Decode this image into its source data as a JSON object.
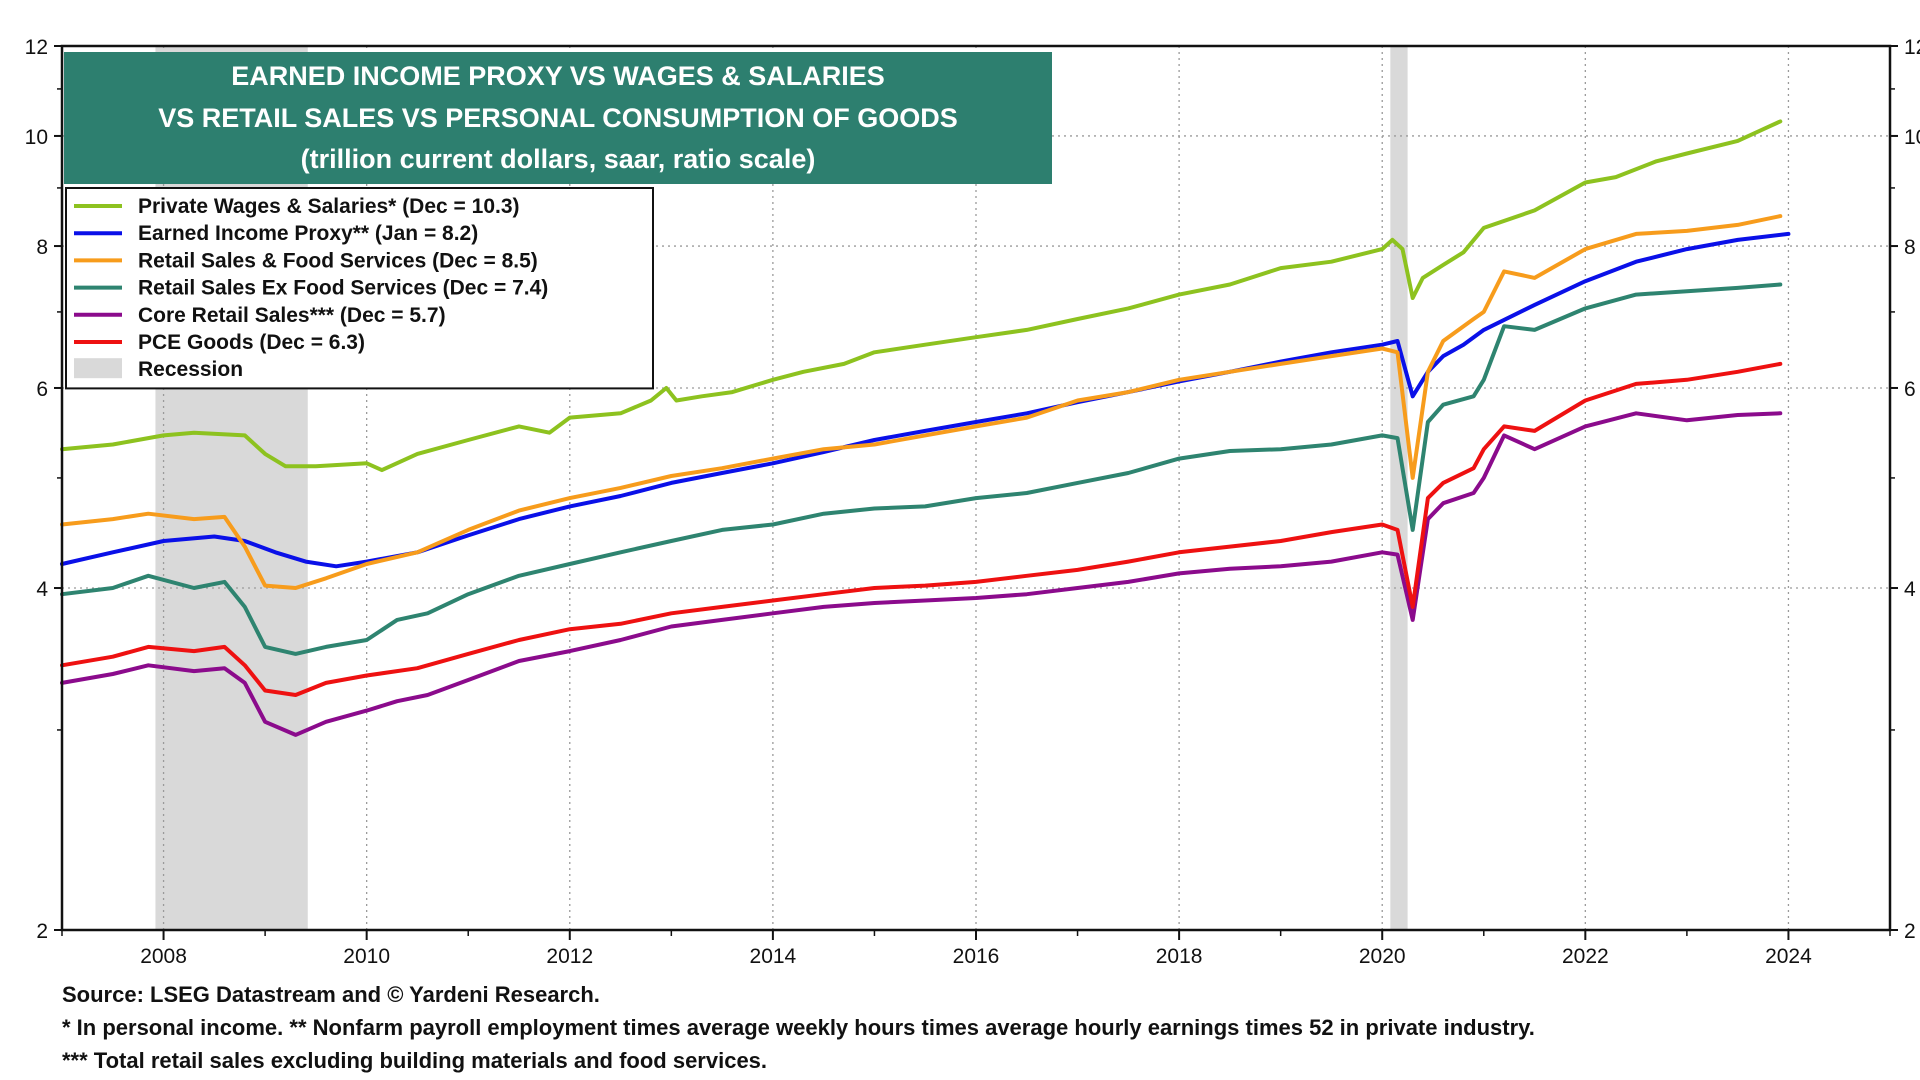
{
  "chart_data": {
    "type": "line",
    "title": "EARNED INCOME PROXY VS WAGES & SALARIES",
    "title_line2": "VS RETAIL SALES VS PERSONAL CONSUMPTION OF GOODS",
    "subtitle": "(trillion current dollars, saar, ratio scale)",
    "y_scale": "log",
    "ylim": [
      2,
      12
    ],
    "xlim": [
      2007.0,
      2025.0
    ],
    "y_ticks": [
      2,
      4,
      6,
      8,
      10,
      12
    ],
    "x_ticks": [
      2008,
      2010,
      2012,
      2014,
      2016,
      2018,
      2020,
      2022,
      2024
    ],
    "grid": true,
    "legend_position": "top-left",
    "recessions": [
      [
        2007.92,
        2009.42
      ],
      [
        2020.08,
        2020.25
      ]
    ],
    "recession_label": "Recession",
    "recession_color": "#d9d9d9",
    "series": [
      {
        "name": "Private Wages & Salaries* (Dec = 10.3)",
        "color": "#8dc21f",
        "points": [
          [
            2007.0,
            5.3
          ],
          [
            2007.5,
            5.35
          ],
          [
            2008.0,
            5.45
          ],
          [
            2008.3,
            5.48
          ],
          [
            2008.8,
            5.45
          ],
          [
            2009.0,
            5.25
          ],
          [
            2009.2,
            5.12
          ],
          [
            2009.5,
            5.12
          ],
          [
            2010.0,
            5.15
          ],
          [
            2010.15,
            5.08
          ],
          [
            2010.5,
            5.25
          ],
          [
            2011.0,
            5.4
          ],
          [
            2011.5,
            5.55
          ],
          [
            2011.8,
            5.48
          ],
          [
            2012.0,
            5.65
          ],
          [
            2012.5,
            5.7
          ],
          [
            2012.8,
            5.85
          ],
          [
            2012.95,
            6.0
          ],
          [
            2013.05,
            5.85
          ],
          [
            2013.3,
            5.9
          ],
          [
            2013.6,
            5.95
          ],
          [
            2014.0,
            6.1
          ],
          [
            2014.3,
            6.2
          ],
          [
            2014.7,
            6.3
          ],
          [
            2015.0,
            6.45
          ],
          [
            2015.5,
            6.55
          ],
          [
            2016.0,
            6.65
          ],
          [
            2016.5,
            6.75
          ],
          [
            2017.0,
            6.9
          ],
          [
            2017.5,
            7.05
          ],
          [
            2018.0,
            7.25
          ],
          [
            2018.5,
            7.4
          ],
          [
            2019.0,
            7.65
          ],
          [
            2019.5,
            7.75
          ],
          [
            2020.0,
            7.95
          ],
          [
            2020.1,
            8.1
          ],
          [
            2020.2,
            7.95
          ],
          [
            2020.3,
            7.2
          ],
          [
            2020.4,
            7.5
          ],
          [
            2020.6,
            7.7
          ],
          [
            2020.8,
            7.9
          ],
          [
            2021.0,
            8.3
          ],
          [
            2021.5,
            8.6
          ],
          [
            2022.0,
            9.1
          ],
          [
            2022.3,
            9.2
          ],
          [
            2022.7,
            9.5
          ],
          [
            2023.0,
            9.65
          ],
          [
            2023.5,
            9.9
          ],
          [
            2023.92,
            10.3
          ]
        ]
      },
      {
        "name": "Earned Income Proxy** (Jan = 8.2)",
        "color": "#0a10e8",
        "points": [
          [
            2007.0,
            4.2
          ],
          [
            2007.5,
            4.3
          ],
          [
            2008.0,
            4.4
          ],
          [
            2008.5,
            4.44
          ],
          [
            2008.8,
            4.4
          ],
          [
            2009.1,
            4.3
          ],
          [
            2009.4,
            4.22
          ],
          [
            2009.7,
            4.18
          ],
          [
            2010.0,
            4.22
          ],
          [
            2010.5,
            4.3
          ],
          [
            2011.0,
            4.45
          ],
          [
            2011.5,
            4.6
          ],
          [
            2012.0,
            4.72
          ],
          [
            2012.5,
            4.82
          ],
          [
            2013.0,
            4.95
          ],
          [
            2013.5,
            5.05
          ],
          [
            2014.0,
            5.15
          ],
          [
            2014.5,
            5.27
          ],
          [
            2015.0,
            5.4
          ],
          [
            2015.5,
            5.5
          ],
          [
            2016.0,
            5.6
          ],
          [
            2016.5,
            5.7
          ],
          [
            2017.0,
            5.83
          ],
          [
            2017.5,
            5.95
          ],
          [
            2018.0,
            6.08
          ],
          [
            2018.5,
            6.2
          ],
          [
            2019.0,
            6.33
          ],
          [
            2019.5,
            6.45
          ],
          [
            2020.0,
            6.55
          ],
          [
            2020.15,
            6.6
          ],
          [
            2020.3,
            5.9
          ],
          [
            2020.45,
            6.2
          ],
          [
            2020.6,
            6.4
          ],
          [
            2020.8,
            6.55
          ],
          [
            2021.0,
            6.75
          ],
          [
            2021.5,
            7.1
          ],
          [
            2022.0,
            7.45
          ],
          [
            2022.5,
            7.75
          ],
          [
            2023.0,
            7.95
          ],
          [
            2023.5,
            8.1
          ],
          [
            2024.0,
            8.2
          ]
        ]
      },
      {
        "name": "Retail Sales & Food Services (Dec = 8.5)",
        "color": "#f79c1c",
        "points": [
          [
            2007.0,
            4.55
          ],
          [
            2007.5,
            4.6
          ],
          [
            2007.85,
            4.65
          ],
          [
            2008.3,
            4.6
          ],
          [
            2008.6,
            4.62
          ],
          [
            2008.8,
            4.35
          ],
          [
            2009.0,
            4.02
          ],
          [
            2009.3,
            4.0
          ],
          [
            2009.6,
            4.08
          ],
          [
            2010.0,
            4.2
          ],
          [
            2010.5,
            4.3
          ],
          [
            2011.0,
            4.5
          ],
          [
            2011.5,
            4.68
          ],
          [
            2012.0,
            4.8
          ],
          [
            2012.5,
            4.9
          ],
          [
            2013.0,
            5.02
          ],
          [
            2013.5,
            5.1
          ],
          [
            2014.0,
            5.2
          ],
          [
            2014.5,
            5.3
          ],
          [
            2015.0,
            5.35
          ],
          [
            2015.5,
            5.45
          ],
          [
            2016.0,
            5.55
          ],
          [
            2016.5,
            5.65
          ],
          [
            2017.0,
            5.85
          ],
          [
            2017.5,
            5.95
          ],
          [
            2018.0,
            6.1
          ],
          [
            2018.5,
            6.2
          ],
          [
            2019.0,
            6.3
          ],
          [
            2019.5,
            6.4
          ],
          [
            2020.0,
            6.5
          ],
          [
            2020.15,
            6.45
          ],
          [
            2020.3,
            5.0
          ],
          [
            2020.45,
            6.2
          ],
          [
            2020.6,
            6.6
          ],
          [
            2020.9,
            6.9
          ],
          [
            2021.0,
            7.0
          ],
          [
            2021.2,
            7.6
          ],
          [
            2021.5,
            7.5
          ],
          [
            2022.0,
            7.95
          ],
          [
            2022.5,
            8.2
          ],
          [
            2023.0,
            8.25
          ],
          [
            2023.5,
            8.35
          ],
          [
            2023.92,
            8.5
          ]
        ]
      },
      {
        "name": "Retail Sales Ex Food Services (Dec = 7.4)",
        "color": "#2e8470",
        "points": [
          [
            2007.0,
            3.95
          ],
          [
            2007.5,
            4.0
          ],
          [
            2007.85,
            4.1
          ],
          [
            2008.3,
            4.0
          ],
          [
            2008.6,
            4.05
          ],
          [
            2008.8,
            3.85
          ],
          [
            2009.0,
            3.55
          ],
          [
            2009.3,
            3.5
          ],
          [
            2009.6,
            3.55
          ],
          [
            2010.0,
            3.6
          ],
          [
            2010.3,
            3.75
          ],
          [
            2010.6,
            3.8
          ],
          [
            2011.0,
            3.95
          ],
          [
            2011.5,
            4.1
          ],
          [
            2012.0,
            4.2
          ],
          [
            2012.5,
            4.3
          ],
          [
            2013.0,
            4.4
          ],
          [
            2013.5,
            4.5
          ],
          [
            2014.0,
            4.55
          ],
          [
            2014.5,
            4.65
          ],
          [
            2015.0,
            4.7
          ],
          [
            2015.5,
            4.72
          ],
          [
            2016.0,
            4.8
          ],
          [
            2016.5,
            4.85
          ],
          [
            2017.0,
            4.95
          ],
          [
            2017.5,
            5.05
          ],
          [
            2018.0,
            5.2
          ],
          [
            2018.5,
            5.28
          ],
          [
            2019.0,
            5.3
          ],
          [
            2019.5,
            5.35
          ],
          [
            2020.0,
            5.45
          ],
          [
            2020.15,
            5.42
          ],
          [
            2020.3,
            4.5
          ],
          [
            2020.45,
            5.6
          ],
          [
            2020.6,
            5.8
          ],
          [
            2020.9,
            5.9
          ],
          [
            2021.0,
            6.1
          ],
          [
            2021.2,
            6.8
          ],
          [
            2021.5,
            6.75
          ],
          [
            2022.0,
            7.05
          ],
          [
            2022.5,
            7.25
          ],
          [
            2023.0,
            7.3
          ],
          [
            2023.5,
            7.35
          ],
          [
            2023.92,
            7.4
          ]
        ]
      },
      {
        "name": "Core Retail  Sales*** (Dec = 5.7)",
        "color": "#8b0b8c",
        "points": [
          [
            2007.0,
            3.3
          ],
          [
            2007.5,
            3.36
          ],
          [
            2007.85,
            3.42
          ],
          [
            2008.3,
            3.38
          ],
          [
            2008.6,
            3.4
          ],
          [
            2008.8,
            3.3
          ],
          [
            2009.0,
            3.05
          ],
          [
            2009.3,
            2.97
          ],
          [
            2009.6,
            3.05
          ],
          [
            2010.0,
            3.12
          ],
          [
            2010.3,
            3.18
          ],
          [
            2010.6,
            3.22
          ],
          [
            2011.0,
            3.32
          ],
          [
            2011.5,
            3.45
          ],
          [
            2012.0,
            3.52
          ],
          [
            2012.5,
            3.6
          ],
          [
            2013.0,
            3.7
          ],
          [
            2013.5,
            3.75
          ],
          [
            2014.0,
            3.8
          ],
          [
            2014.5,
            3.85
          ],
          [
            2015.0,
            3.88
          ],
          [
            2015.5,
            3.9
          ],
          [
            2016.0,
            3.92
          ],
          [
            2016.5,
            3.95
          ],
          [
            2017.0,
            4.0
          ],
          [
            2017.5,
            4.05
          ],
          [
            2018.0,
            4.12
          ],
          [
            2018.5,
            4.16
          ],
          [
            2019.0,
            4.18
          ],
          [
            2019.5,
            4.22
          ],
          [
            2020.0,
            4.3
          ],
          [
            2020.15,
            4.28
          ],
          [
            2020.3,
            3.75
          ],
          [
            2020.45,
            4.6
          ],
          [
            2020.6,
            4.75
          ],
          [
            2020.9,
            4.85
          ],
          [
            2021.0,
            5.0
          ],
          [
            2021.2,
            5.45
          ],
          [
            2021.5,
            5.3
          ],
          [
            2022.0,
            5.55
          ],
          [
            2022.5,
            5.7
          ],
          [
            2023.0,
            5.62
          ],
          [
            2023.5,
            5.68
          ],
          [
            2023.92,
            5.7
          ]
        ]
      },
      {
        "name": "PCE Goods (Dec = 6.3)",
        "color": "#ee1111",
        "points": [
          [
            2007.0,
            3.42
          ],
          [
            2007.5,
            3.48
          ],
          [
            2007.85,
            3.55
          ],
          [
            2008.3,
            3.52
          ],
          [
            2008.6,
            3.55
          ],
          [
            2008.8,
            3.42
          ],
          [
            2009.0,
            3.25
          ],
          [
            2009.3,
            3.22
          ],
          [
            2009.6,
            3.3
          ],
          [
            2010.0,
            3.35
          ],
          [
            2010.5,
            3.4
          ],
          [
            2011.0,
            3.5
          ],
          [
            2011.5,
            3.6
          ],
          [
            2012.0,
            3.68
          ],
          [
            2012.5,
            3.72
          ],
          [
            2013.0,
            3.8
          ],
          [
            2013.5,
            3.85
          ],
          [
            2014.0,
            3.9
          ],
          [
            2014.5,
            3.95
          ],
          [
            2015.0,
            4.0
          ],
          [
            2015.5,
            4.02
          ],
          [
            2016.0,
            4.05
          ],
          [
            2016.5,
            4.1
          ],
          [
            2017.0,
            4.15
          ],
          [
            2017.5,
            4.22
          ],
          [
            2018.0,
            4.3
          ],
          [
            2018.5,
            4.35
          ],
          [
            2019.0,
            4.4
          ],
          [
            2019.5,
            4.48
          ],
          [
            2020.0,
            4.55
          ],
          [
            2020.15,
            4.5
          ],
          [
            2020.3,
            3.85
          ],
          [
            2020.45,
            4.8
          ],
          [
            2020.6,
            4.95
          ],
          [
            2020.9,
            5.1
          ],
          [
            2021.0,
            5.3
          ],
          [
            2021.2,
            5.55
          ],
          [
            2021.5,
            5.5
          ],
          [
            2022.0,
            5.85
          ],
          [
            2022.5,
            6.05
          ],
          [
            2023.0,
            6.1
          ],
          [
            2023.5,
            6.2
          ],
          [
            2023.92,
            6.3
          ]
        ]
      }
    ]
  },
  "footnotes": [
    "Source: LSEG Datastream and © Yardeni Research.",
    "* In personal income. ** Nonfarm payroll employment times average weekly hours times average hourly earnings times 52 in private industry.",
    "*** Total retail sales excluding building materials and food services."
  ]
}
